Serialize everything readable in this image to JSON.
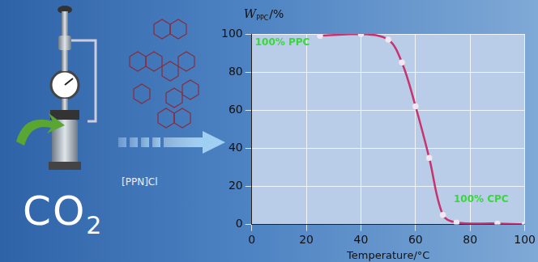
{
  "chart_data": {
    "type": "line",
    "ylabel": [
      "W",
      "PPC",
      "/%"
    ],
    "xlabel": "Temperature/°C",
    "x": [
      25,
      40,
      50,
      55,
      60,
      65,
      70,
      75,
      90,
      100
    ],
    "values": [
      99,
      100,
      97,
      85,
      62,
      35,
      5,
      1,
      0.5,
      0
    ],
    "color": "#c8326e",
    "marker": "circle",
    "xlim": [
      0,
      100
    ],
    "xticks": [
      0,
      20,
      40,
      60,
      80,
      100
    ],
    "ylim": [
      0,
      100
    ],
    "yticks": [
      0,
      20,
      40,
      60,
      80,
      100
    ],
    "grid": true,
    "annotations": [
      {
        "text": "100% PPC",
        "color": "#38d838"
      },
      {
        "text": "100% CPC",
        "color": "#38d838"
      }
    ]
  },
  "scheme": {
    "reactant": [
      "CO",
      "2"
    ],
    "catalyst": "[PPN]Cl"
  }
}
